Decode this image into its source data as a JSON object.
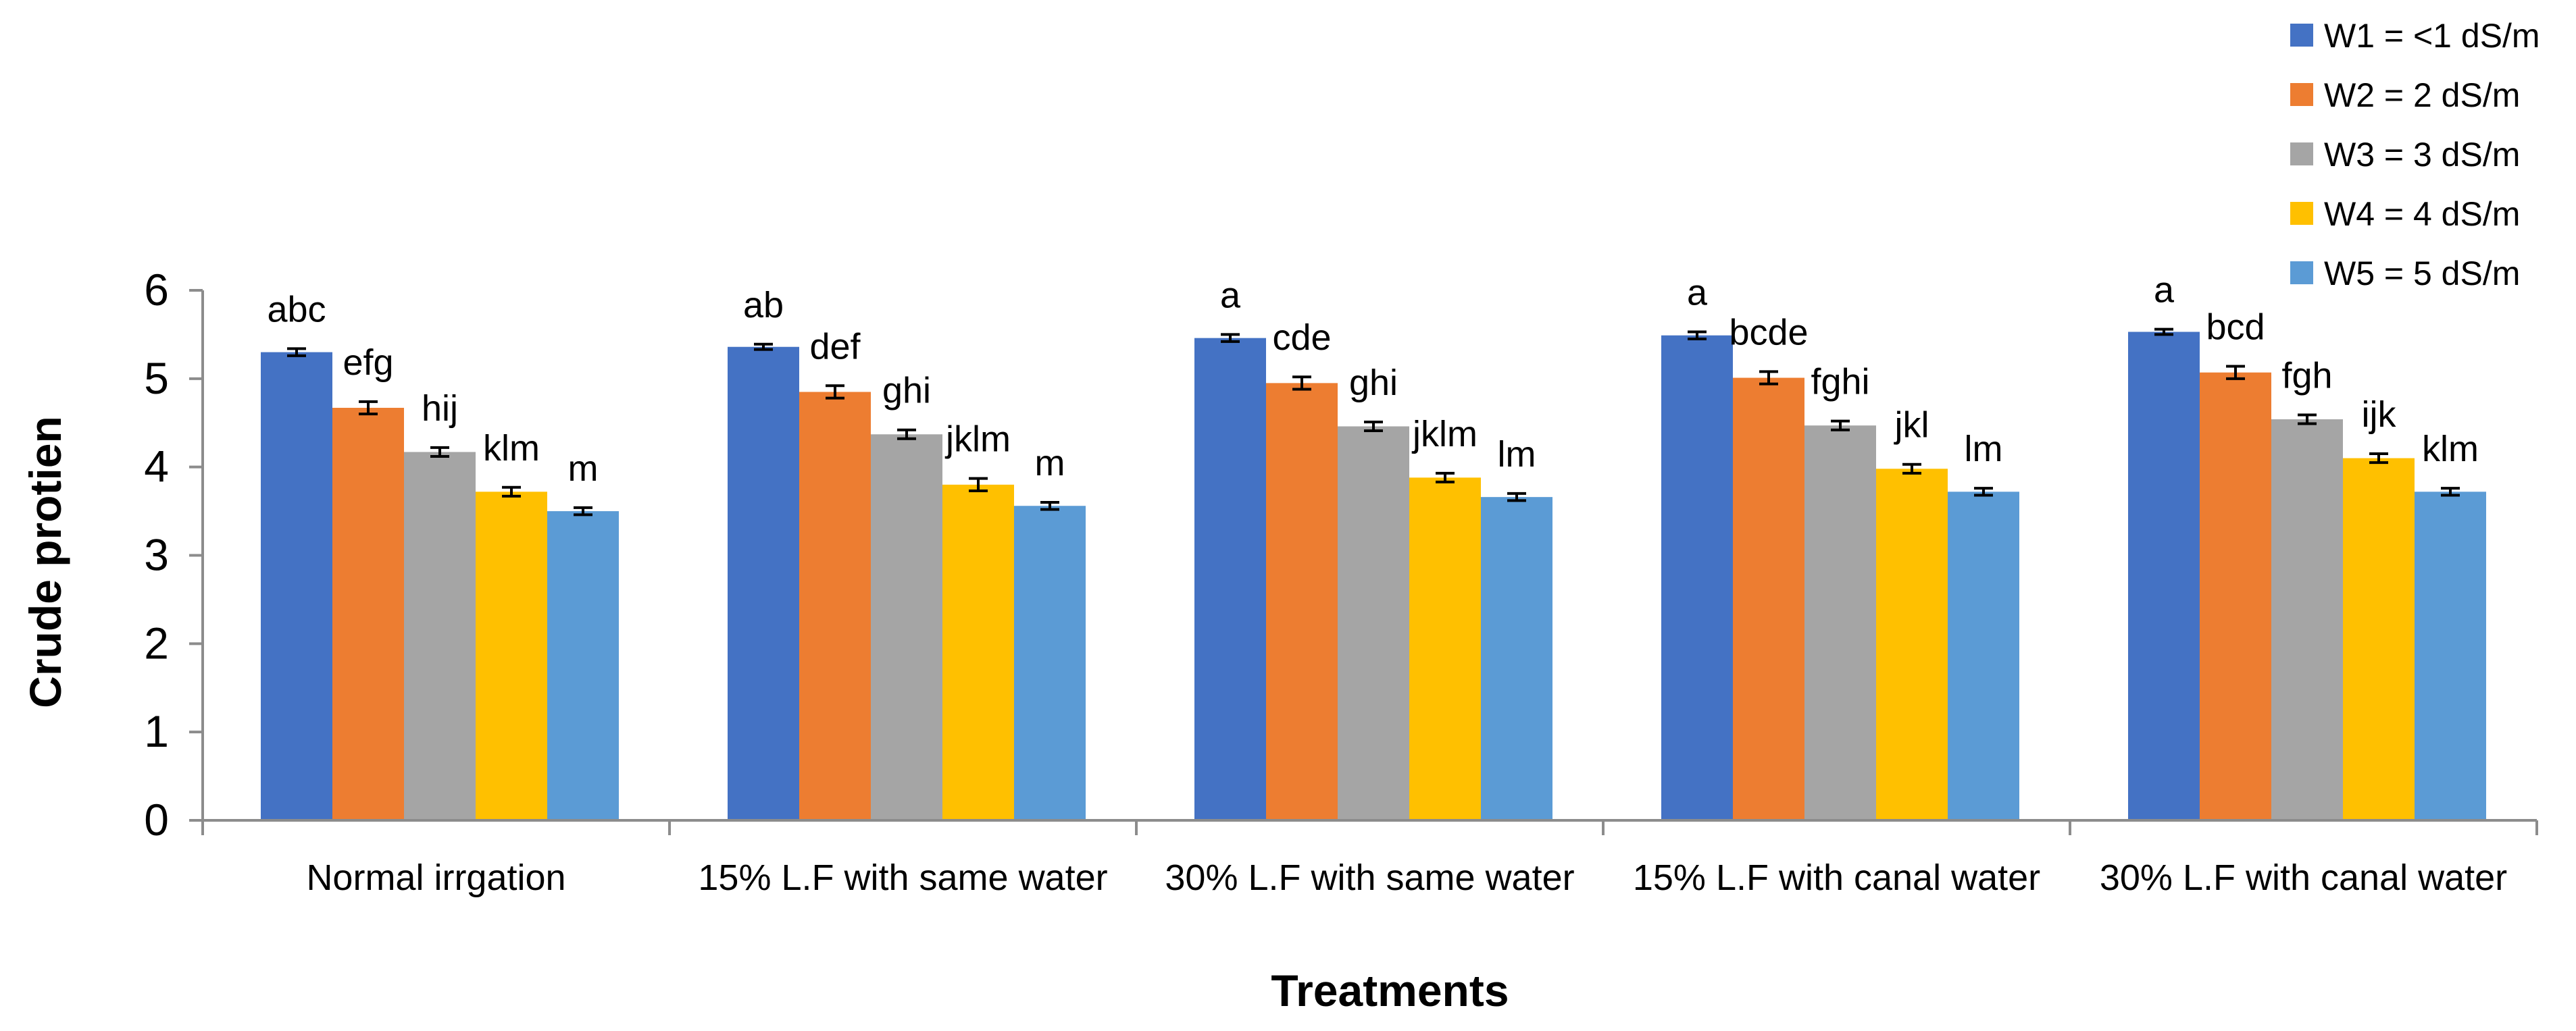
{
  "chart_data": {
    "type": "bar",
    "title": "",
    "xlabel": "Treatments",
    "ylabel": "Crude protien",
    "ylim": [
      0,
      6
    ],
    "yticks": [
      "0",
      "1",
      "2",
      "3",
      "4",
      "5",
      "6"
    ],
    "grid": false,
    "legend_position": "top-right",
    "categories": [
      "Normal irrgation",
      "15% L.F with same water",
      "30% L.F with same water",
      "15% L.F with canal water",
      "30% L.F with canal water"
    ],
    "series": [
      {
        "name": "W1 = <1 dS/m",
        "color": "#4472C4",
        "values": [
          5.3,
          5.36,
          5.46,
          5.49,
          5.53
        ],
        "errors": [
          0.04,
          0.03,
          0.04,
          0.04,
          0.03
        ],
        "labels": [
          "abc",
          "ab",
          "a",
          "a",
          "a"
        ]
      },
      {
        "name": "W2 = 2 dS/m",
        "color": "#ED7D31",
        "values": [
          4.67,
          4.85,
          4.95,
          5.01,
          5.07
        ],
        "errors": [
          0.07,
          0.07,
          0.07,
          0.07,
          0.07
        ],
        "labels": [
          "efg",
          "def",
          "cde",
          "bcde",
          "bcd"
        ]
      },
      {
        "name": "W3 = 3 dS/m",
        "color": "#A5A5A5",
        "values": [
          4.17,
          4.37,
          4.46,
          4.47,
          4.54
        ],
        "errors": [
          0.05,
          0.05,
          0.05,
          0.05,
          0.05
        ],
        "labels": [
          "hij",
          "ghi",
          "ghi",
          "fghi",
          "fgh"
        ]
      },
      {
        "name": "W4 = 4 dS/m",
        "color": "#FFC000",
        "values": [
          3.72,
          3.8,
          3.88,
          3.98,
          4.1
        ],
        "errors": [
          0.05,
          0.07,
          0.05,
          0.05,
          0.05
        ],
        "labels": [
          "klm",
          "jklm",
          "jklm",
          "jkl",
          "ijk"
        ]
      },
      {
        "name": "W5 = 5 dS/m",
        "color": "#5B9BD5",
        "values": [
          3.5,
          3.56,
          3.66,
          3.72,
          3.72
        ],
        "errors": [
          0.04,
          0.04,
          0.04,
          0.04,
          0.04
        ],
        "labels": [
          "m",
          "m",
          "lm",
          "lm",
          "klm"
        ]
      }
    ]
  }
}
